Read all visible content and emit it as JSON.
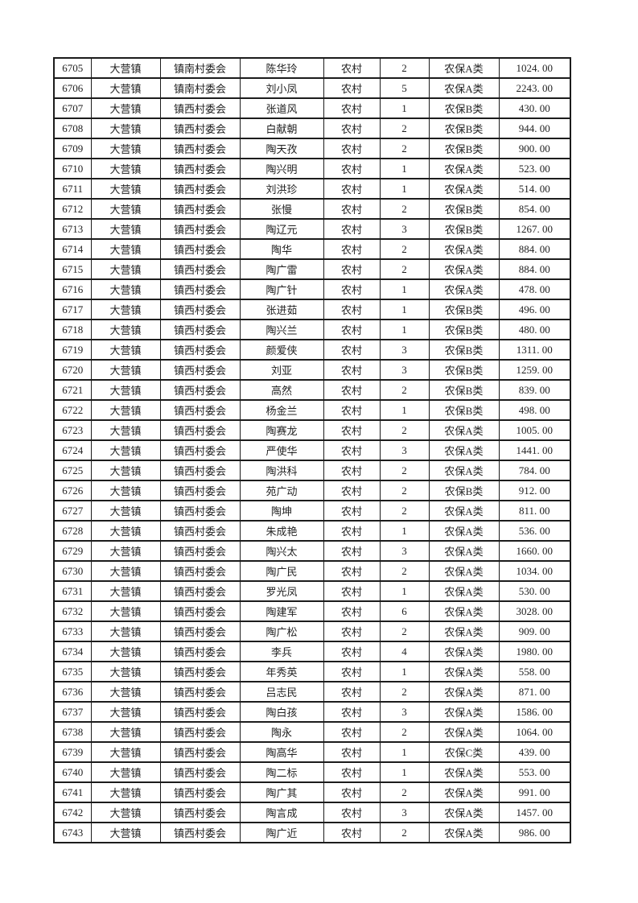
{
  "page": {
    "background_color": "#ffffff",
    "text_color": "#1f1f1f",
    "border_color": "#1c1c1c"
  },
  "table": {
    "kind": "rural-insurance-roster",
    "columns": [
      "serial_no",
      "town",
      "village_committee",
      "person_name",
      "residence_type",
      "person_count",
      "insurance_category",
      "amount"
    ],
    "rows": [
      [
        "6705",
        "大营镇",
        "镇南村委会",
        "陈华玲",
        "农村",
        "2",
        "农保A类",
        "1024. 00"
      ],
      [
        "6706",
        "大营镇",
        "镇南村委会",
        "刘小凤",
        "农村",
        "5",
        "农保A类",
        "2243. 00"
      ],
      [
        "6707",
        "大营镇",
        "镇西村委会",
        "张道风",
        "农村",
        "1",
        "农保B类",
        "430. 00"
      ],
      [
        "6708",
        "大营镇",
        "镇西村委会",
        "白献朝",
        "农村",
        "2",
        "农保B类",
        "944. 00"
      ],
      [
        "6709",
        "大营镇",
        "镇西村委会",
        "陶天孜",
        "农村",
        "2",
        "农保B类",
        "900. 00"
      ],
      [
        "6710",
        "大营镇",
        "镇西村委会",
        "陶兴明",
        "农村",
        "1",
        "农保A类",
        "523. 00"
      ],
      [
        "6711",
        "大营镇",
        "镇西村委会",
        "刘洪珍",
        "农村",
        "1",
        "农保A类",
        "514. 00"
      ],
      [
        "6712",
        "大营镇",
        "镇西村委会",
        "张慢",
        "农村",
        "2",
        "农保B类",
        "854. 00"
      ],
      [
        "6713",
        "大营镇",
        "镇西村委会",
        "陶辽元",
        "农村",
        "3",
        "农保B类",
        "1267. 00"
      ],
      [
        "6714",
        "大营镇",
        "镇西村委会",
        "陶华",
        "农村",
        "2",
        "农保A类",
        "884. 00"
      ],
      [
        "6715",
        "大营镇",
        "镇西村委会",
        "陶广雷",
        "农村",
        "2",
        "农保A类",
        "884. 00"
      ],
      [
        "6716",
        "大营镇",
        "镇西村委会",
        "陶广针",
        "农村",
        "1",
        "农保A类",
        "478. 00"
      ],
      [
        "6717",
        "大营镇",
        "镇西村委会",
        "张进茹",
        "农村",
        "1",
        "农保B类",
        "496. 00"
      ],
      [
        "6718",
        "大营镇",
        "镇西村委会",
        "陶兴兰",
        "农村",
        "1",
        "农保B类",
        "480. 00"
      ],
      [
        "6719",
        "大营镇",
        "镇西村委会",
        "颜爱侠",
        "农村",
        "3",
        "农保B类",
        "1311. 00"
      ],
      [
        "6720",
        "大营镇",
        "镇西村委会",
        "刘亚",
        "农村",
        "3",
        "农保B类",
        "1259. 00"
      ],
      [
        "6721",
        "大营镇",
        "镇西村委会",
        "高然",
        "农村",
        "2",
        "农保B类",
        "839. 00"
      ],
      [
        "6722",
        "大营镇",
        "镇西村委会",
        "杨金兰",
        "农村",
        "1",
        "农保B类",
        "498. 00"
      ],
      [
        "6723",
        "大营镇",
        "镇西村委会",
        "陶赛龙",
        "农村",
        "2",
        "农保A类",
        "1005. 00"
      ],
      [
        "6724",
        "大营镇",
        "镇西村委会",
        "严使华",
        "农村",
        "3",
        "农保A类",
        "1441. 00"
      ],
      [
        "6725",
        "大营镇",
        "镇西村委会",
        "陶洪科",
        "农村",
        "2",
        "农保A类",
        "784. 00"
      ],
      [
        "6726",
        "大营镇",
        "镇西村委会",
        "苑广动",
        "农村",
        "2",
        "农保B类",
        "912. 00"
      ],
      [
        "6727",
        "大营镇",
        "镇西村委会",
        "陶坤",
        "农村",
        "2",
        "农保A类",
        "811. 00"
      ],
      [
        "6728",
        "大营镇",
        "镇西村委会",
        "朱成艳",
        "农村",
        "1",
        "农保A类",
        "536. 00"
      ],
      [
        "6729",
        "大营镇",
        "镇西村委会",
        "陶兴太",
        "农村",
        "3",
        "农保A类",
        "1660. 00"
      ],
      [
        "6730",
        "大营镇",
        "镇西村委会",
        "陶广民",
        "农村",
        "2",
        "农保A类",
        "1034. 00"
      ],
      [
        "6731",
        "大营镇",
        "镇西村委会",
        "罗光凤",
        "农村",
        "1",
        "农保A类",
        "530. 00"
      ],
      [
        "6732",
        "大营镇",
        "镇西村委会",
        "陶建军",
        "农村",
        "6",
        "农保A类",
        "3028. 00"
      ],
      [
        "6733",
        "大营镇",
        "镇西村委会",
        "陶广松",
        "农村",
        "2",
        "农保A类",
        "909. 00"
      ],
      [
        "6734",
        "大营镇",
        "镇西村委会",
        "李兵",
        "农村",
        "4",
        "农保A类",
        "1980. 00"
      ],
      [
        "6735",
        "大营镇",
        "镇西村委会",
        "年秀英",
        "农村",
        "1",
        "农保A类",
        "558. 00"
      ],
      [
        "6736",
        "大营镇",
        "镇西村委会",
        "吕志民",
        "农村",
        "2",
        "农保A类",
        "871. 00"
      ],
      [
        "6737",
        "大营镇",
        "镇西村委会",
        "陶白孩",
        "农村",
        "3",
        "农保A类",
        "1586. 00"
      ],
      [
        "6738",
        "大营镇",
        "镇西村委会",
        "陶永",
        "农村",
        "2",
        "农保A类",
        "1064. 00"
      ],
      [
        "6739",
        "大营镇",
        "镇西村委会",
        "陶高华",
        "农村",
        "1",
        "农保C类",
        "439. 00"
      ],
      [
        "6740",
        "大营镇",
        "镇西村委会",
        "陶二标",
        "农村",
        "1",
        "农保A类",
        "553. 00"
      ],
      [
        "6741",
        "大营镇",
        "镇西村委会",
        "陶广其",
        "农村",
        "2",
        "农保A类",
        "991. 00"
      ],
      [
        "6742",
        "大营镇",
        "镇西村委会",
        "陶言成",
        "农村",
        "3",
        "农保A类",
        "1457. 00"
      ],
      [
        "6743",
        "大营镇",
        "镇西村委会",
        "陶广近",
        "农村",
        "2",
        "农保A类",
        "986. 00"
      ]
    ]
  }
}
